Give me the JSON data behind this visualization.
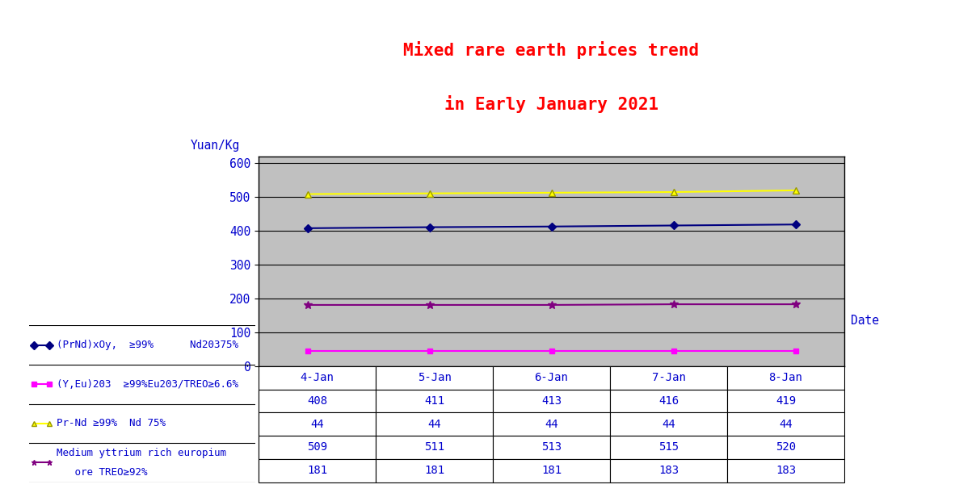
{
  "title_line1": "Mixed rare earth prices trend",
  "title_line2": "in Early January 2021",
  "ylabel": "Yuan/Kg",
  "xlabel": "Date",
  "dates": [
    "4-Jan",
    "5-Jan",
    "6-Jan",
    "7-Jan",
    "8-Jan"
  ],
  "series": [
    {
      "label": "(PrNd)xOy,  ≥99%      Nd20375%",
      "values": [
        408,
        411,
        413,
        416,
        419
      ],
      "color": "#000080",
      "marker": "D",
      "markersize": 5,
      "linewidth": 1.5
    },
    {
      "label": "(Y,Eu)203  ≥99%Eu203/TREO≥6.6%",
      "values": [
        44,
        44,
        44,
        44,
        44
      ],
      "color": "#FF00FF",
      "marker": "s",
      "markersize": 5,
      "linewidth": 1.5
    },
    {
      "label": "Pr-Nd ≥99%  Nd 75%",
      "values": [
        509,
        511,
        513,
        515,
        520
      ],
      "color": "#FFFF00",
      "marker": "^",
      "markersize": 6,
      "linewidth": 1.5
    },
    {
      "label": "Medium yttrium rich europium\n   ore TREO≥92%",
      "values": [
        181,
        181,
        181,
        183,
        183
      ],
      "color": "#800080",
      "marker": "*",
      "markersize": 7,
      "linewidth": 1.5
    }
  ],
  "ylim": [
    0,
    620
  ],
  "yticks": [
    0,
    100,
    200,
    300,
    400,
    500,
    600
  ],
  "plot_bg": "#C0C0C0",
  "fig_bg": "#FFFFFF",
  "title_color": "#FF0000",
  "grid_color": "#000000",
  "text_color": "#0000CD"
}
